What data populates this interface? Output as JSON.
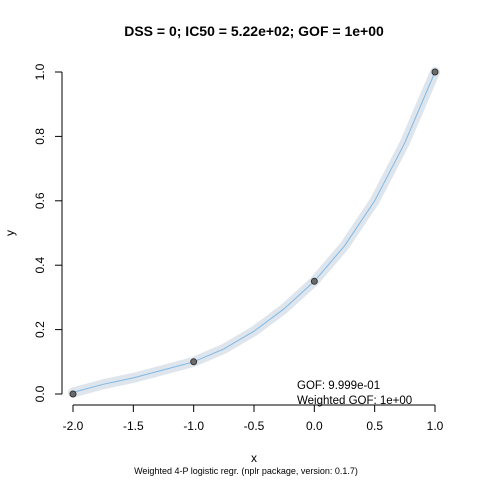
{
  "chart_data": {
    "type": "scatter",
    "title": "DSS = 0; IC50 = 5.22e+02; GOF = 1e+00",
    "xlabel": "x",
    "ylabel": "y",
    "xlim": [
      -2.0,
      1.0
    ],
    "ylim": [
      0.0,
      1.0
    ],
    "x_ticks": [
      "-2.0",
      "-1.5",
      "-1.0",
      "-0.5",
      "0.0",
      "0.5",
      "1.0"
    ],
    "y_ticks": [
      "0.0",
      "0.2",
      "0.4",
      "0.6",
      "0.8",
      "1.0"
    ],
    "grid": false,
    "points": {
      "x": [
        -2.0,
        -1.0,
        0.0,
        1.0
      ],
      "y": [
        0.0,
        0.1,
        0.35,
        1.0
      ]
    },
    "fit_curve": {
      "x": [
        -2.0,
        -1.75,
        -1.5,
        -1.25,
        -1.0,
        -0.75,
        -0.5,
        -0.25,
        0.0,
        0.25,
        0.5,
        0.75,
        1.0
      ],
      "y": [
        0.005,
        0.03,
        0.05,
        0.075,
        0.1,
        0.14,
        0.195,
        0.265,
        0.35,
        0.46,
        0.6,
        0.78,
        1.0
      ]
    },
    "annotations": [
      "GOF: 9.999e-01",
      "Weighted GOF: 1e+00"
    ],
    "caption": "Weighted 4-P logistic regr. (nplr package, version: 0.1.7)",
    "colors": {
      "curve": "#7fb9e6",
      "band": "#dfe5ec",
      "point_fill": "#6b6b6b",
      "point_edge": "#333333"
    }
  }
}
